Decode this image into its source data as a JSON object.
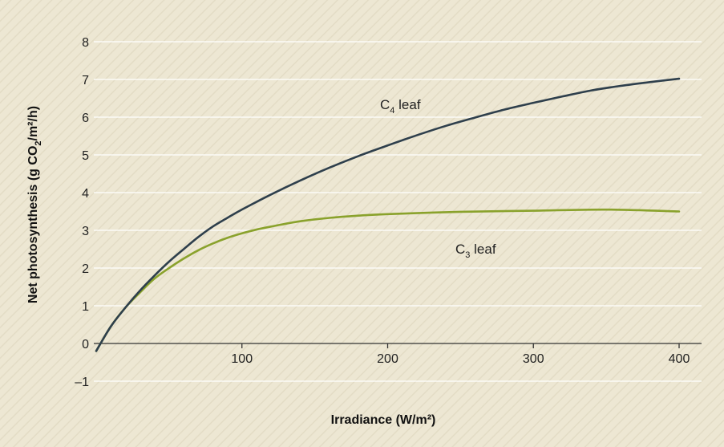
{
  "chart_data": {
    "type": "line",
    "xlabel": "Irradiance (W/m²)",
    "ylabel": "Net photosynthesis (g CO2/m²/h)",
    "xlim": [
      0,
      415
    ],
    "ylim": [
      -1.2,
      8.6
    ],
    "x_ticks": [
      100,
      200,
      300,
      400
    ],
    "x_tick_labels": [
      "100",
      "200",
      "300",
      "400"
    ],
    "y_ticks": [
      -1,
      0,
      1,
      2,
      3,
      4,
      5,
      6,
      7,
      8
    ],
    "y_tick_labels": [
      "–1",
      "0",
      "1",
      "2",
      "3",
      "4",
      "5",
      "6",
      "7",
      "8"
    ],
    "grid": true,
    "colors": {
      "background": "#ede7d3",
      "hatch": "#e3dcc5",
      "grid": "#ffffff",
      "c4": "#2e3f4c",
      "c3": "#8aa22c",
      "axis": "#333333"
    },
    "series": [
      {
        "name": "C4 leaf",
        "label_main": "C",
        "label_sub": "4",
        "label_rest": " leaf",
        "x": [
          0,
          10,
          20,
          30,
          40,
          50,
          60,
          70,
          80,
          90,
          100,
          120,
          140,
          160,
          180,
          200,
          220,
          240,
          260,
          280,
          300,
          320,
          340,
          360,
          380,
          400
        ],
        "y": [
          -0.2,
          0.45,
          0.95,
          1.4,
          1.8,
          2.17,
          2.5,
          2.82,
          3.1,
          3.33,
          3.55,
          3.95,
          4.32,
          4.66,
          4.97,
          5.25,
          5.52,
          5.77,
          5.99,
          6.2,
          6.38,
          6.55,
          6.71,
          6.83,
          6.93,
          7.02
        ]
      },
      {
        "name": "C3 leaf",
        "label_main": "C",
        "label_sub": "3",
        "label_rest": " leaf",
        "x": [
          0,
          10,
          20,
          30,
          40,
          50,
          60,
          70,
          80,
          90,
          100,
          110,
          120,
          140,
          160,
          180,
          200,
          250,
          300,
          350,
          400
        ],
        "y": [
          -0.2,
          0.45,
          0.95,
          1.35,
          1.72,
          2.0,
          2.25,
          2.47,
          2.65,
          2.8,
          2.92,
          3.02,
          3.1,
          3.24,
          3.33,
          3.39,
          3.43,
          3.49,
          3.52,
          3.55,
          3.5
        ]
      }
    ]
  }
}
